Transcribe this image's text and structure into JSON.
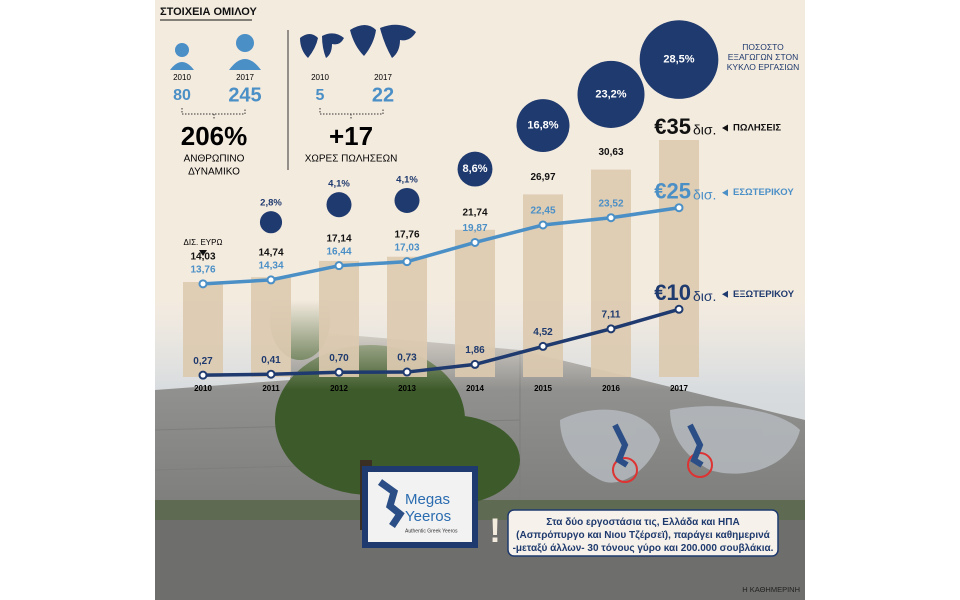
{
  "header": "ΣΤΟΙΧΕΙΑ ΟΜΙΛΟΥ",
  "employees": {
    "year_from": "2010",
    "year_to": "2017",
    "value_from": "80",
    "value_to": "245",
    "change": "206%",
    "label": [
      "ΑΝΘΡΩΠΙΝΟ",
      "ΔΥΝΑΜΙΚΟ"
    ]
  },
  "countries": {
    "year_from": "2010",
    "year_to": "2017",
    "value_from": "5",
    "value_to": "22",
    "change": "+17",
    "label": [
      "ΧΩΡΕΣ ΠΩΛΗΣΕΩΝ"
    ]
  },
  "chart_data": {
    "type": "bar",
    "unit_note": "ΔΙΣ. ΕΥΡΩ",
    "unit": "δισ.",
    "categories": [
      "2010",
      "2011",
      "2012",
      "2013",
      "2014",
      "2015",
      "2016",
      "2017"
    ],
    "series": [
      {
        "name": "ΠΩΛΗΣΕΙΣ",
        "type": "bar",
        "color": "#dccab0",
        "values": [
          14.03,
          14.74,
          17.14,
          17.76,
          21.74,
          26.97,
          30.63,
          35
        ],
        "value_labels": [
          "14,03",
          "14,74",
          "17,14",
          "17,76",
          "21,74",
          "26,97",
          "30,63",
          "€35"
        ]
      },
      {
        "name": "ΕΣΩΤΕΡΙΚΟΥ",
        "type": "line",
        "color": "#4a8fc6",
        "values": [
          13.76,
          14.34,
          16.44,
          17.03,
          19.87,
          22.45,
          23.52,
          25
        ],
        "value_labels": [
          "13,76",
          "14,34",
          "16,44",
          "17,03",
          "19,87",
          "22,45",
          "23,52",
          "€25"
        ]
      },
      {
        "name": "ΕΞΩΤΕΡΙΚΟΥ",
        "type": "line",
        "color": "#1f3a6e",
        "values": [
          0.27,
          0.41,
          0.7,
          0.73,
          1.86,
          4.52,
          7.11,
          10
        ],
        "value_labels": [
          "0,27",
          "0,41",
          "0,70",
          "0,73",
          "1,86",
          "4,52",
          "7,11",
          "€10"
        ]
      },
      {
        "name": "ΠΟΣΟΣΤΟ ΕΞΑΓΩΓΩΝ ΣΤΟΝ ΚΥΚΛΟ ΕΡΓΑΣΙΩΝ",
        "type": "bubble",
        "color": "#1f3a6e",
        "values": [
          null,
          2.8,
          4.1,
          4.1,
          8.6,
          16.8,
          23.2,
          28.5
        ],
        "value_labels": [
          null,
          "2,8%",
          "4,1%",
          "4,1%",
          "8,6%",
          "16,8%",
          "23,2%",
          "28,5%"
        ]
      }
    ]
  },
  "photo": {
    "logo_line1": "Megas",
    "logo_line2": "Yeeros",
    "logo_tagline": "Authentic Greek Yeeros",
    "note": "Στα δύο εργοστάσια τις, Ελλάδα και ΗΠΑ (Ασπρόπυργο και Νιου Τζέρσεϊ), παράγει καθημερινά -μεταξύ άλλων- 30 τόνους γύρο και 200.000 σουβλάκια.",
    "credit": "Η ΚΑΘΗΜΕΡΙΝΗ"
  }
}
